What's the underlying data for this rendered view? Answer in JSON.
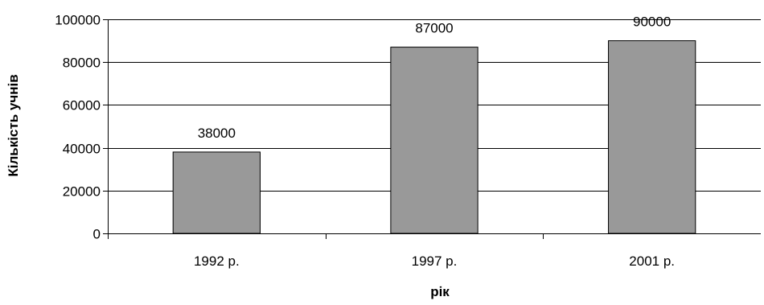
{
  "chart_data": {
    "type": "bar",
    "categories": [
      "1992 р.",
      "1997 р.",
      "2001 р."
    ],
    "values": [
      38000,
      87000,
      90000
    ],
    "data_labels": [
      "38000",
      "87000",
      "90000"
    ],
    "title": "",
    "xlabel": "рік",
    "ylabel": "Кількість учнів",
    "ylim": [
      0,
      100000
    ],
    "yticks": [
      0,
      20000,
      40000,
      60000,
      80000,
      100000
    ],
    "ytick_labels": [
      "0",
      "20000",
      "40000",
      "60000",
      "80000",
      "100000"
    ],
    "grid": true,
    "legend": "none",
    "colors": {
      "bar_fill": "#999999",
      "bar_stroke": "#000000",
      "grid": "#000000",
      "axis": "#000000"
    }
  }
}
